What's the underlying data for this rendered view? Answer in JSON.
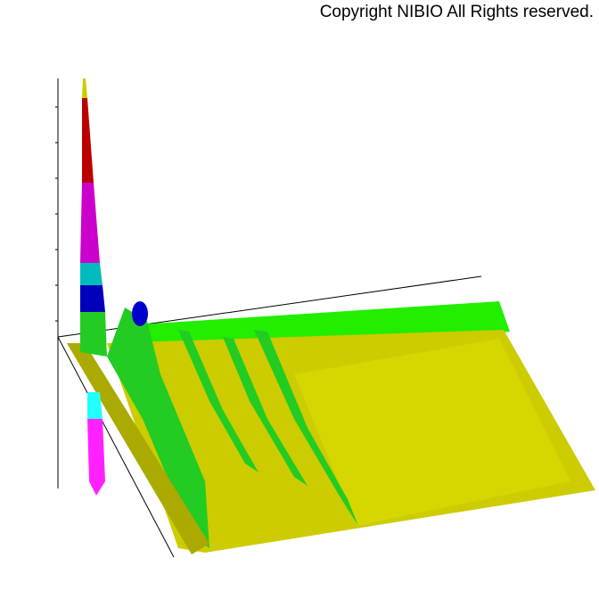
{
  "copyright": "Copyright NIBIO All Rights reserved."
}
